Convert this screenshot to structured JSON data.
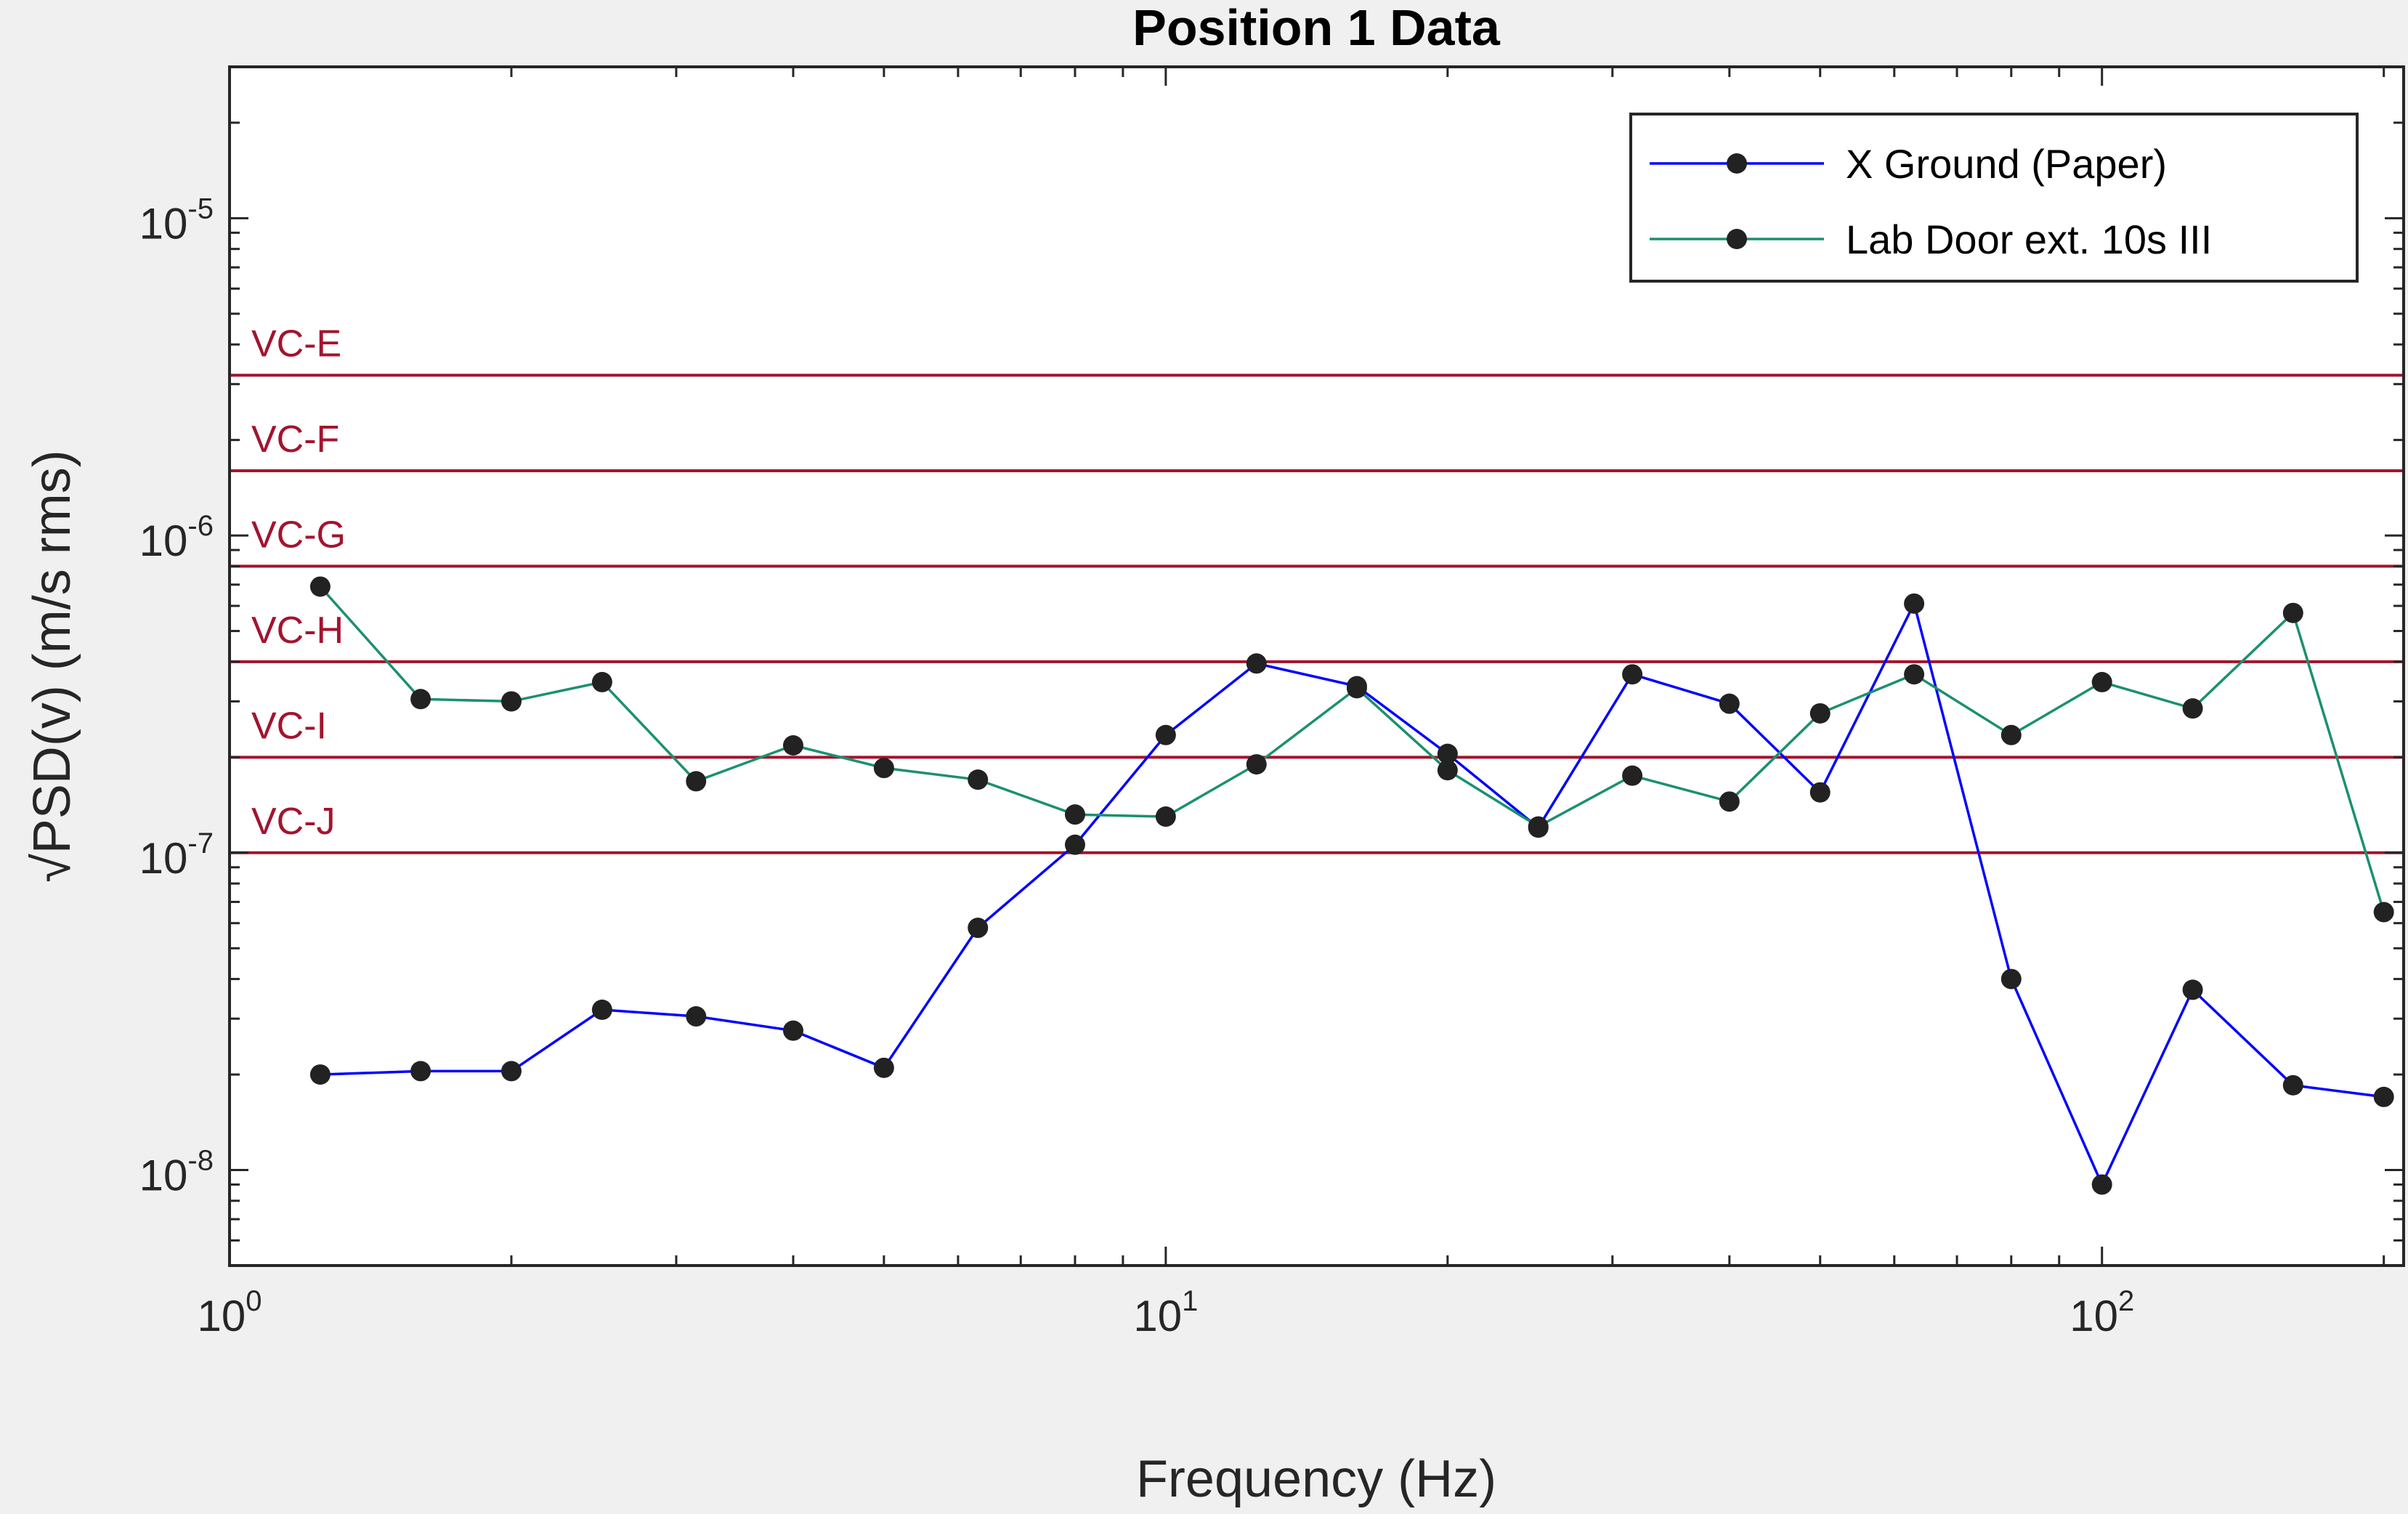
{
  "chart_data": {
    "type": "line",
    "title": "Position 1 Data",
    "xlabel": "Frequency (Hz)",
    "ylabel": "√PSD(v) (m/s rms)",
    "x_scale": "log",
    "y_scale": "log",
    "xlim": [
      1,
      210
    ],
    "ylim": [
      5e-09,
      3e-05
    ],
    "x_ticks": [
      {
        "value": 1,
        "base": "10",
        "exp": "0"
      },
      {
        "value": 10,
        "base": "10",
        "exp": "1"
      },
      {
        "value": 100,
        "base": "10",
        "exp": "2"
      }
    ],
    "y_ticks": [
      {
        "value": 1e-08,
        "base": "10",
        "exp": "-8"
      },
      {
        "value": 1e-07,
        "base": "10",
        "exp": "-7"
      },
      {
        "value": 1e-06,
        "base": "10",
        "exp": "-6"
      },
      {
        "value": 1e-05,
        "base": "10",
        "exp": "-5"
      }
    ],
    "grid": false,
    "legend_position": "top-right",
    "x": [
      1.25,
      1.6,
      2,
      2.5,
      3.15,
      4,
      5,
      6.3,
      8,
      10,
      12.5,
      16,
      20,
      25,
      31.5,
      40,
      50,
      63,
      80,
      100,
      125,
      160,
      200
    ],
    "series": [
      {
        "name": "X Ground (Paper)",
        "color": "#0000ff",
        "values": [
          2e-08,
          2.05e-08,
          2.05e-08,
          3.2e-08,
          3.05e-08,
          2.75e-08,
          2.1e-08,
          5.8e-08,
          1.06e-07,
          2.35e-07,
          3.95e-07,
          3.35e-07,
          2.05e-07,
          1.2e-07,
          3.65e-07,
          2.95e-07,
          1.55e-07,
          6.1e-07,
          4e-08,
          9e-09,
          3.7e-08,
          1.85e-08,
          1.7e-08
        ]
      },
      {
        "name": "Lab Door ext. 10s III",
        "color": "#1b9070",
        "values": [
          6.9e-07,
          3.05e-07,
          3e-07,
          3.45e-07,
          1.68e-07,
          2.18e-07,
          1.85e-07,
          1.7e-07,
          1.32e-07,
          1.3e-07,
          1.9e-07,
          3.3e-07,
          1.82e-07,
          1.21e-07,
          1.75e-07,
          1.45e-07,
          2.75e-07,
          3.65e-07,
          2.35e-07,
          3.45e-07,
          2.85e-07,
          5.7e-07,
          6.5e-08
        ]
      }
    ],
    "reference_lines": [
      {
        "label": "VC-E",
        "value": 3.2e-06
      },
      {
        "label": "VC-F",
        "value": 1.6e-06
      },
      {
        "label": "VC-G",
        "value": 8e-07
      },
      {
        "label": "VC-H",
        "value": 4e-07
      },
      {
        "label": "VC-I",
        "value": 2e-07
      },
      {
        "label": "VC-J",
        "value": 1e-07
      }
    ],
    "reference_color": "#a2142f",
    "marker_color": "#222222"
  }
}
